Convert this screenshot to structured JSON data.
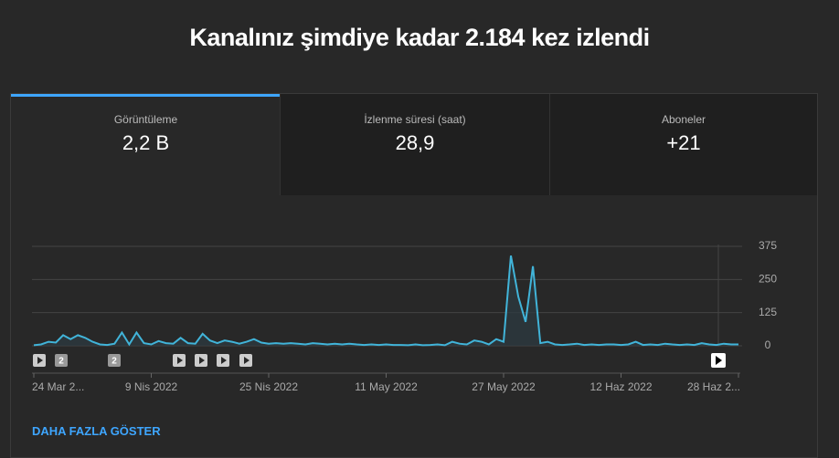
{
  "header": {
    "title": "Kanalınız şimdiye kadar 2.184 kez izlendi"
  },
  "tabs": [
    {
      "label": "Görüntüleme",
      "value": "2,2 B"
    },
    {
      "label": "İzlenme süresi (saat)",
      "value": "28,9"
    },
    {
      "label": "Aboneler",
      "value": "+21"
    }
  ],
  "chart_data": {
    "type": "line",
    "color": "#41b4d9",
    "categories": [
      "24 Mar 2...",
      null,
      null,
      null,
      null,
      null,
      null,
      null,
      null,
      null,
      null,
      null,
      null,
      null,
      null,
      null,
      "9 Nis 2022",
      null,
      null,
      null,
      null,
      null,
      null,
      null,
      null,
      null,
      null,
      null,
      null,
      null,
      null,
      null,
      "25 Nis 2022",
      null,
      null,
      null,
      null,
      null,
      null,
      null,
      null,
      null,
      null,
      null,
      null,
      null,
      null,
      null,
      "11 May 2022",
      null,
      null,
      null,
      null,
      null,
      null,
      null,
      null,
      null,
      null,
      null,
      null,
      null,
      null,
      null,
      "27 May 2022",
      null,
      null,
      null,
      null,
      null,
      null,
      null,
      null,
      null,
      null,
      null,
      null,
      null,
      null,
      null,
      "12 Haz 2022",
      null,
      null,
      null,
      null,
      null,
      null,
      null,
      null,
      null,
      null,
      null,
      null,
      null,
      null,
      null,
      "28 Haz 2..."
    ],
    "values": [
      2,
      5,
      15,
      12,
      40,
      25,
      40,
      30,
      15,
      5,
      3,
      8,
      50,
      5,
      50,
      10,
      5,
      18,
      10,
      8,
      30,
      10,
      8,
      45,
      20,
      10,
      20,
      15,
      8,
      15,
      25,
      12,
      8,
      10,
      8,
      10,
      8,
      5,
      10,
      8,
      5,
      8,
      5,
      8,
      5,
      3,
      5,
      3,
      5,
      3,
      3,
      2,
      5,
      2,
      3,
      5,
      2,
      15,
      8,
      5,
      20,
      15,
      5,
      25,
      15,
      340,
      185,
      90,
      300,
      10,
      15,
      5,
      3,
      5,
      8,
      3,
      5,
      3,
      5,
      5,
      3,
      5,
      15,
      3,
      5,
      3,
      8,
      5,
      3,
      5,
      3,
      10,
      5,
      3,
      8,
      5,
      5
    ],
    "ylim": [
      0,
      375
    ],
    "yticks": [
      0,
      125,
      250,
      375
    ],
    "grid": true,
    "markers": [
      "2",
      "2"
    ]
  },
  "more_link": "DAHA FAZLA GÖSTER"
}
